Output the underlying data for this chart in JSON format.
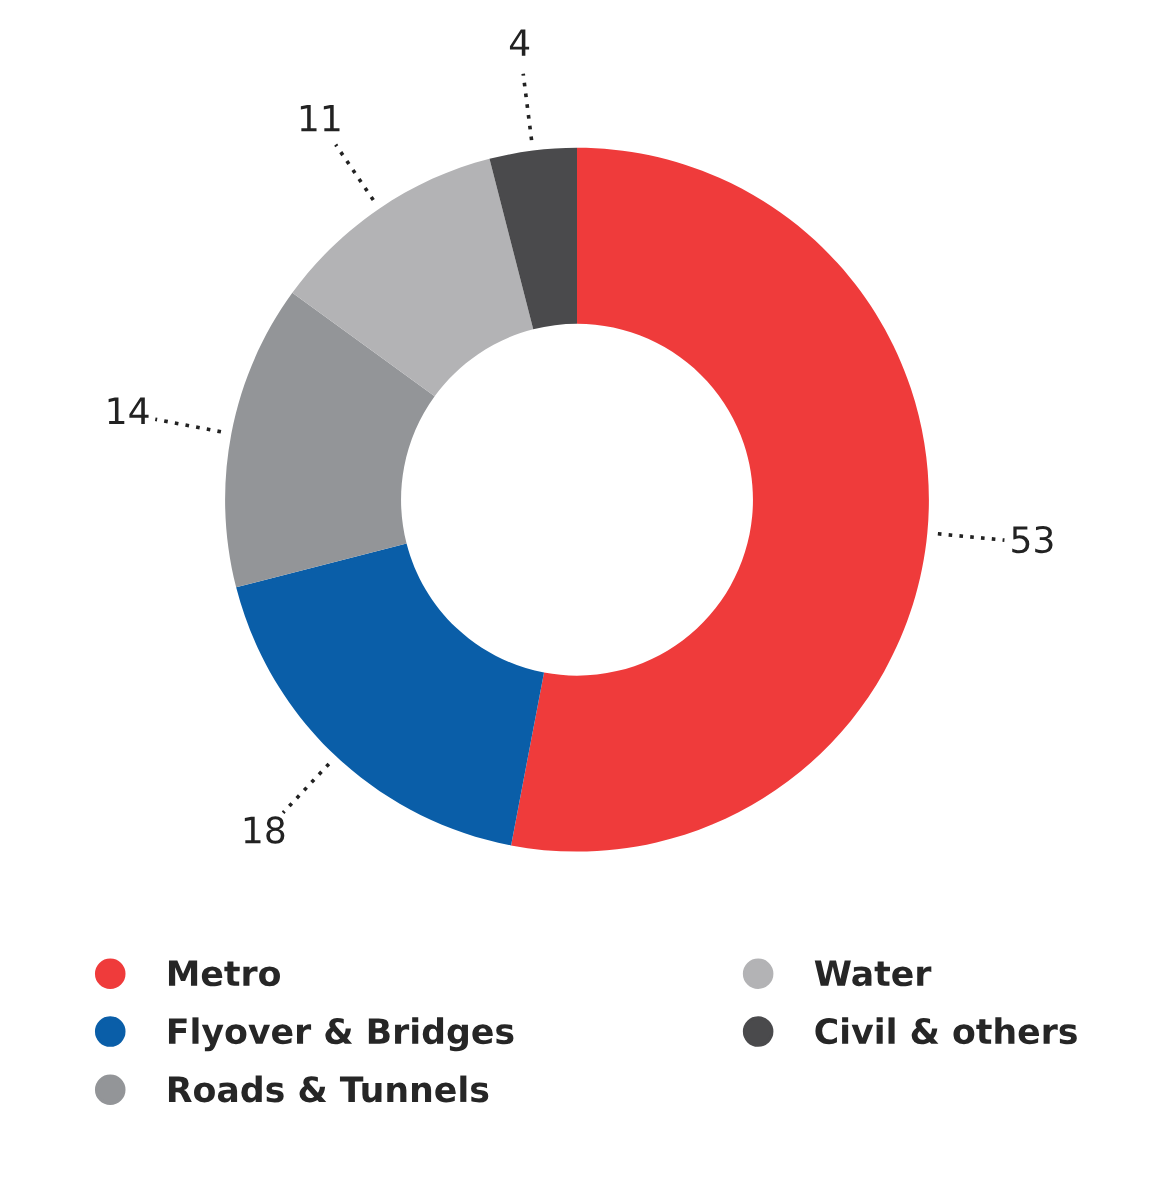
{
  "chart_data": {
    "type": "donut",
    "categories": [
      "Metro",
      "Flyover & Bridges",
      "Roads & Tunnels",
      "Water",
      "Civil & others"
    ],
    "values": [
      53,
      18,
      14,
      11,
      4
    ],
    "colors": [
      "#ef3b3b",
      "#0a5ea8",
      "#939598",
      "#b3b3b5",
      "#4a4a4c"
    ],
    "data_labels": true,
    "legend": "bottom"
  }
}
